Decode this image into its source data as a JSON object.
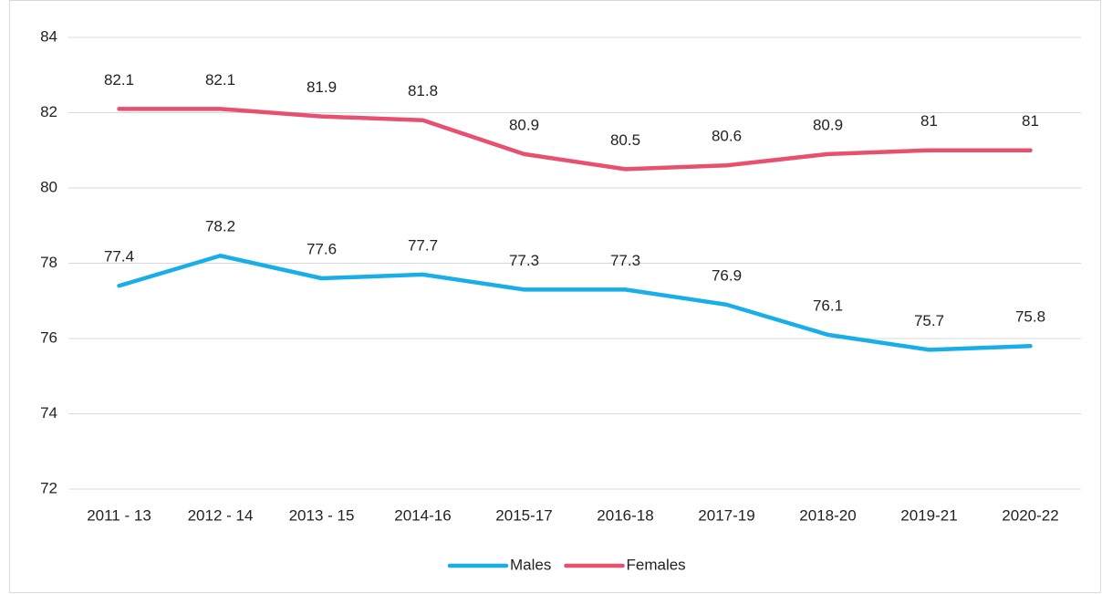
{
  "chart_data": {
    "type": "line",
    "categories": [
      "2011 - 13",
      "2012 - 14",
      "2013 - 15",
      "2014-16",
      "2015-17",
      "2016-18",
      "2017-19",
      "2018-20",
      "2019-21",
      "2020-22"
    ],
    "series": [
      {
        "name": "Males",
        "color": "#1aaee8",
        "values": [
          77.4,
          78.2,
          77.6,
          77.7,
          77.3,
          77.3,
          76.9,
          76.1,
          75.7,
          75.8
        ]
      },
      {
        "name": "Females",
        "color": "#e8506f",
        "values": [
          82.1,
          82.1,
          81.9,
          81.8,
          80.9,
          80.5,
          80.6,
          80.9,
          81,
          81
        ]
      }
    ],
    "ylim": [
      72,
      84
    ],
    "yticks": [
      72,
      74,
      76,
      78,
      80,
      82,
      84
    ],
    "grid": true,
    "legend": "bottom"
  }
}
